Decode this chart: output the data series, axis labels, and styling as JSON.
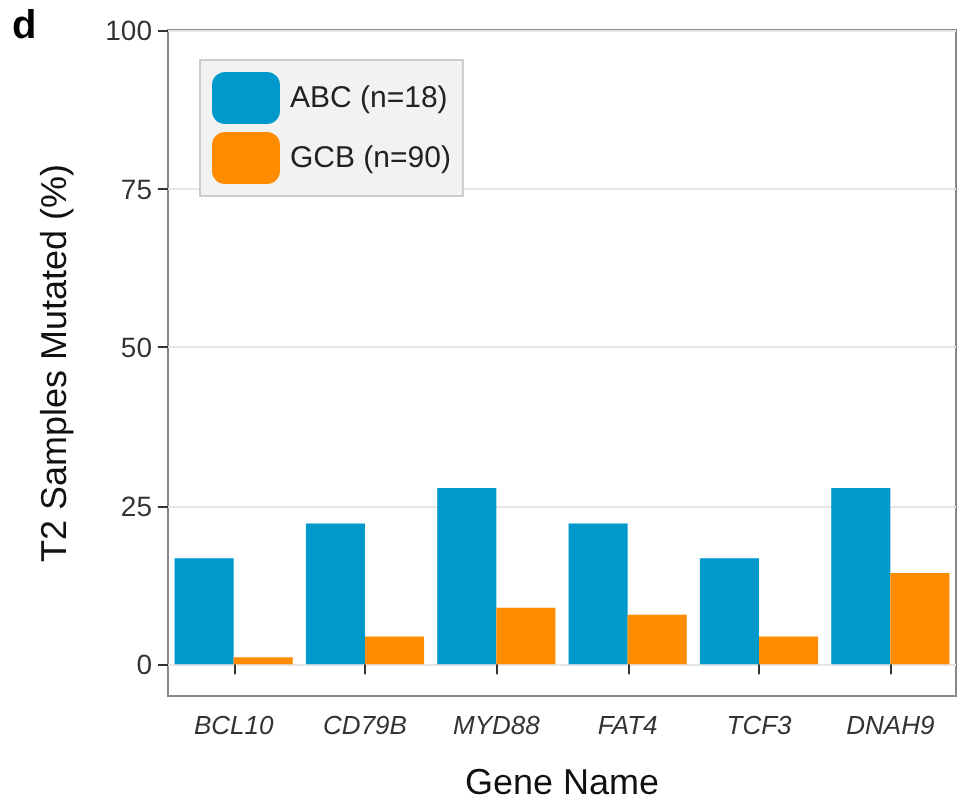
{
  "chart_data": {
    "type": "bar",
    "annotations": [
      "d"
    ],
    "xlabel": "Gene Name",
    "ylabel": "T2 Samples Mutated (%)",
    "categories": [
      "BCL10",
      "CD79B",
      "MYD88",
      "FAT4",
      "TCF3",
      "DNAH9"
    ],
    "series": [
      {
        "name": "ABC (n=18)",
        "color": "#0099cc",
        "values": [
          16.7,
          22.2,
          27.8,
          22.2,
          16.7,
          27.8
        ]
      },
      {
        "name": "GCB (n=90)",
        "color": "#ff8c00",
        "values": [
          1.1,
          4.4,
          8.9,
          7.8,
          4.4,
          14.4
        ]
      }
    ],
    "ylim": [
      -5,
      100
    ],
    "yticks": [
      0,
      25,
      50,
      75,
      100
    ],
    "grid": "y",
    "legend": "top left"
  }
}
